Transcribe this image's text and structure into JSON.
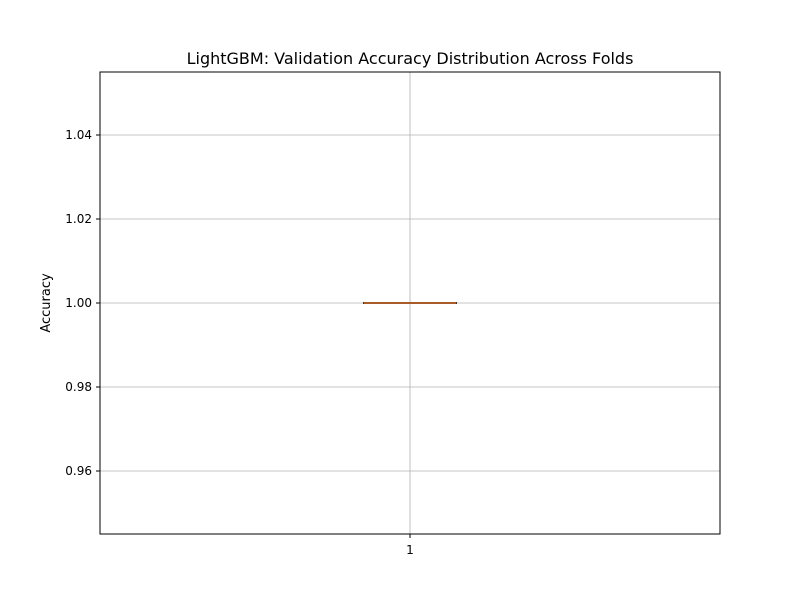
{
  "chart_data": {
    "type": "box",
    "title": "LightGBM: Validation Accuracy Distribution Across Folds",
    "xlabel": "",
    "ylabel": "Accuracy",
    "categories": [
      "1"
    ],
    "ylim": [
      0.945,
      1.055
    ],
    "yticks": [
      0.96,
      0.98,
      1.0,
      1.02,
      1.04
    ],
    "ytick_labels": [
      "0.96",
      "0.98",
      "1.00",
      "1.02",
      "1.04"
    ],
    "xtick_labels": [
      "1"
    ],
    "grid": true,
    "boxes": [
      {
        "category": "1",
        "min": 1.0,
        "q1": 1.0,
        "median": 1.0,
        "q3": 1.0,
        "max": 1.0
      }
    ],
    "colors": {
      "median": "#e07b39",
      "box": "#000000",
      "grid": "#b0b0b0",
      "axes": "#000000"
    }
  }
}
